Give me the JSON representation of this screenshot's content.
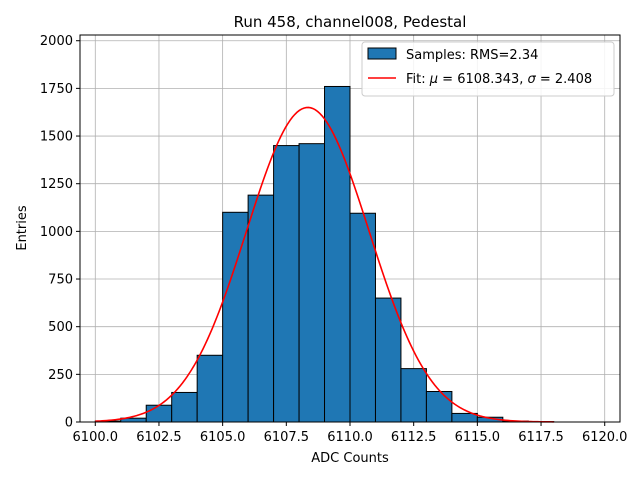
{
  "chart_data": {
    "type": "bar",
    "title": "Run 458, channel008, Pedestal",
    "xlabel": "ADC Counts",
    "ylabel": "Entries",
    "xlim": [
      6099.4,
      6120.6
    ],
    "ylim": [
      0,
      2030
    ],
    "grid": true,
    "legend_position": "top-right",
    "bar_color": "#1f77b4",
    "fit_color": "#ff0000",
    "x_ticks": [
      "6100.0",
      "6102.5",
      "6105.0",
      "6107.5",
      "6110.0",
      "6112.5",
      "6115.0",
      "6117.5",
      "6120.0"
    ],
    "y_ticks": [
      "0",
      "250",
      "500",
      "750",
      "1000",
      "1250",
      "1500",
      "1750",
      "2000"
    ],
    "bins": [
      {
        "x0": 6100,
        "x1": 6101,
        "value": 5
      },
      {
        "x0": 6101,
        "x1": 6102,
        "value": 20
      },
      {
        "x0": 6102,
        "x1": 6103,
        "value": 88
      },
      {
        "x0": 6103,
        "x1": 6104,
        "value": 155
      },
      {
        "x0": 6104,
        "x1": 6105,
        "value": 350
      },
      {
        "x0": 6105,
        "x1": 6106,
        "value": 1100
      },
      {
        "x0": 6106,
        "x1": 6107,
        "value": 1190
      },
      {
        "x0": 6107,
        "x1": 6108,
        "value": 1450
      },
      {
        "x0": 6108,
        "x1": 6109,
        "value": 1460
      },
      {
        "x0": 6109,
        "x1": 6110,
        "value": 1760
      },
      {
        "x0": 6110,
        "x1": 6111,
        "value": 1095
      },
      {
        "x0": 6111,
        "x1": 6112,
        "value": 650
      },
      {
        "x0": 6112,
        "x1": 6113,
        "value": 280
      },
      {
        "x0": 6113,
        "x1": 6114,
        "value": 160
      },
      {
        "x0": 6114,
        "x1": 6115,
        "value": 45
      },
      {
        "x0": 6115,
        "x1": 6116,
        "value": 25
      },
      {
        "x0": 6116,
        "x1": 6117,
        "value": 5
      },
      {
        "x0": 6117,
        "x1": 6118,
        "value": 2
      }
    ],
    "fit": {
      "mu": 6108.343,
      "sigma": 2.408,
      "amplitude": 1650,
      "x_range": [
        6100,
        6118
      ]
    },
    "legend": {
      "samples": "Samples: RMS=2.34",
      "fit_prefix": "Fit: ",
      "mu_symbol": "μ",
      "mu_text": " = 6108.343, ",
      "sigma_symbol": "σ",
      "sigma_text": " = 2.408"
    }
  }
}
